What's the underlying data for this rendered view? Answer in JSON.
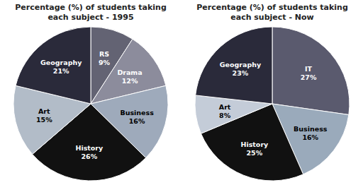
{
  "chart_data": [
    {
      "type": "pie",
      "title": "Percentage (%) of students taking\neach subject - 1995",
      "categories": [
        "RS",
        "Drama",
        "Business",
        "History",
        "Art",
        "Geography"
      ],
      "values": [
        9,
        12,
        16,
        26,
        15,
        21
      ],
      "value_labels": [
        "9%",
        "12%",
        "16%",
        "26%",
        "15%",
        "21%"
      ],
      "colors": [
        "#636373",
        "#8c8c9c",
        "#9eaabb",
        "#111111",
        "#b2bcc8",
        "#2a2a3a"
      ],
      "data_labels": true
    },
    {
      "type": "pie",
      "title": "Percentage (%) of students taking\neach subject - Now",
      "categories": [
        "IT",
        "Business",
        "History",
        "Art",
        "Geography"
      ],
      "values": [
        27,
        16,
        25,
        8,
        23
      ],
      "value_labels": [
        "27%",
        "16%",
        "25%",
        "8%",
        "23%"
      ],
      "colors": [
        "#5a5a6e",
        "#9aaabb",
        "#111111",
        "#c4ccd8",
        "#2a2a3a"
      ],
      "data_labels": true
    }
  ]
}
